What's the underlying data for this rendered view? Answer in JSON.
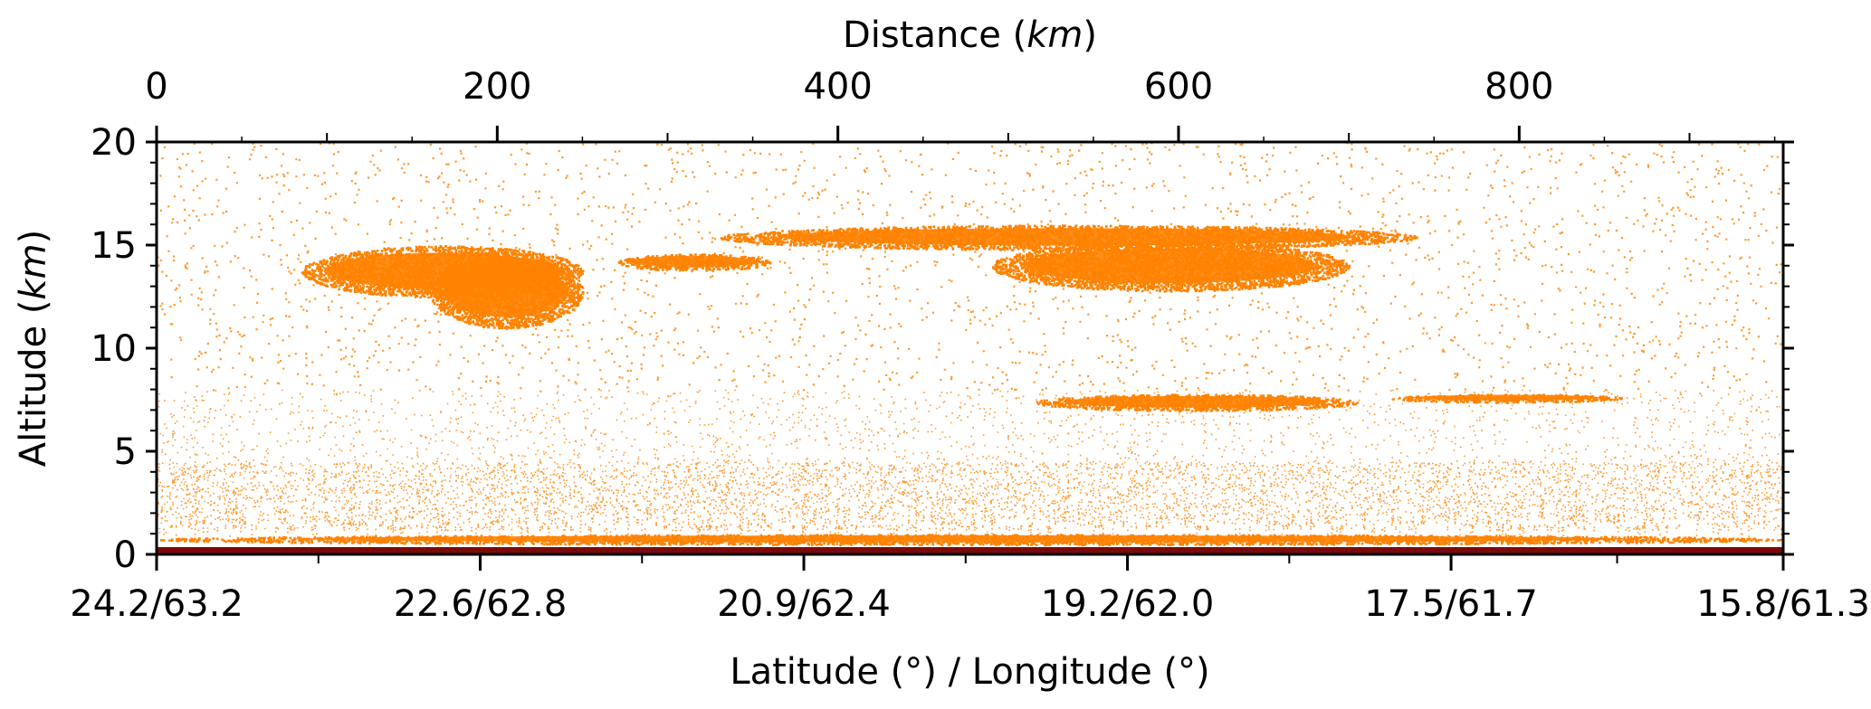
{
  "chart_data": {
    "type": "scatter",
    "title": "",
    "xlabel_top_prefix": "Distance (",
    "xlabel_top_unit": "km",
    "xlabel_top_suffix": ")",
    "xlabel_bottom": "Latitude (°) / Longitude (°)",
    "ylabel_prefix": "Altitude (",
    "ylabel_unit": "km",
    "ylabel_suffix": ")",
    "ylim": [
      0,
      20
    ],
    "distance_lim": [
      0,
      955
    ],
    "y_ticks": [
      0,
      5,
      10,
      15,
      20
    ],
    "y_tick_labels": [
      "0",
      "5",
      "10",
      "15",
      "20"
    ],
    "top_ticks": [
      0,
      200,
      400,
      600,
      800
    ],
    "top_tick_labels": [
      "0",
      "200",
      "400",
      "600",
      "800"
    ],
    "bottom_ticks": [
      0,
      190,
      380,
      570,
      760,
      955
    ],
    "bottom_tick_labels": [
      "24.2/63.2",
      "22.6/62.8",
      "20.9/62.4",
      "19.2/62.0",
      "17.5/61.7",
      "15.8/61.3"
    ],
    "colors": {
      "points": "#ff8200",
      "surface": "#7a0a0a"
    },
    "cloud_layers": [
      {
        "name": "upper",
        "x": [
          85,
          250
        ],
        "y": [
          12.5,
          15.0
        ]
      },
      {
        "name": "upper",
        "x": [
          160,
          250
        ],
        "y": [
          11.0,
          14.5
        ]
      },
      {
        "name": "upper",
        "x": [
          270,
          360
        ],
        "y": [
          13.8,
          14.6
        ]
      },
      {
        "name": "upper",
        "x": [
          330,
          740
        ],
        "y": [
          14.8,
          16.0
        ]
      },
      {
        "name": "upper",
        "x": [
          490,
          700
        ],
        "y": [
          12.8,
          15.2
        ]
      },
      {
        "name": "mid",
        "x": [
          515,
          705
        ],
        "y": [
          7.0,
          7.8
        ]
      },
      {
        "name": "mid",
        "x": [
          725,
          860
        ],
        "y": [
          7.4,
          7.8
        ]
      },
      {
        "name": "low",
        "x": [
          0,
          955
        ],
        "y": [
          0.5,
          1.0
        ]
      }
    ]
  }
}
